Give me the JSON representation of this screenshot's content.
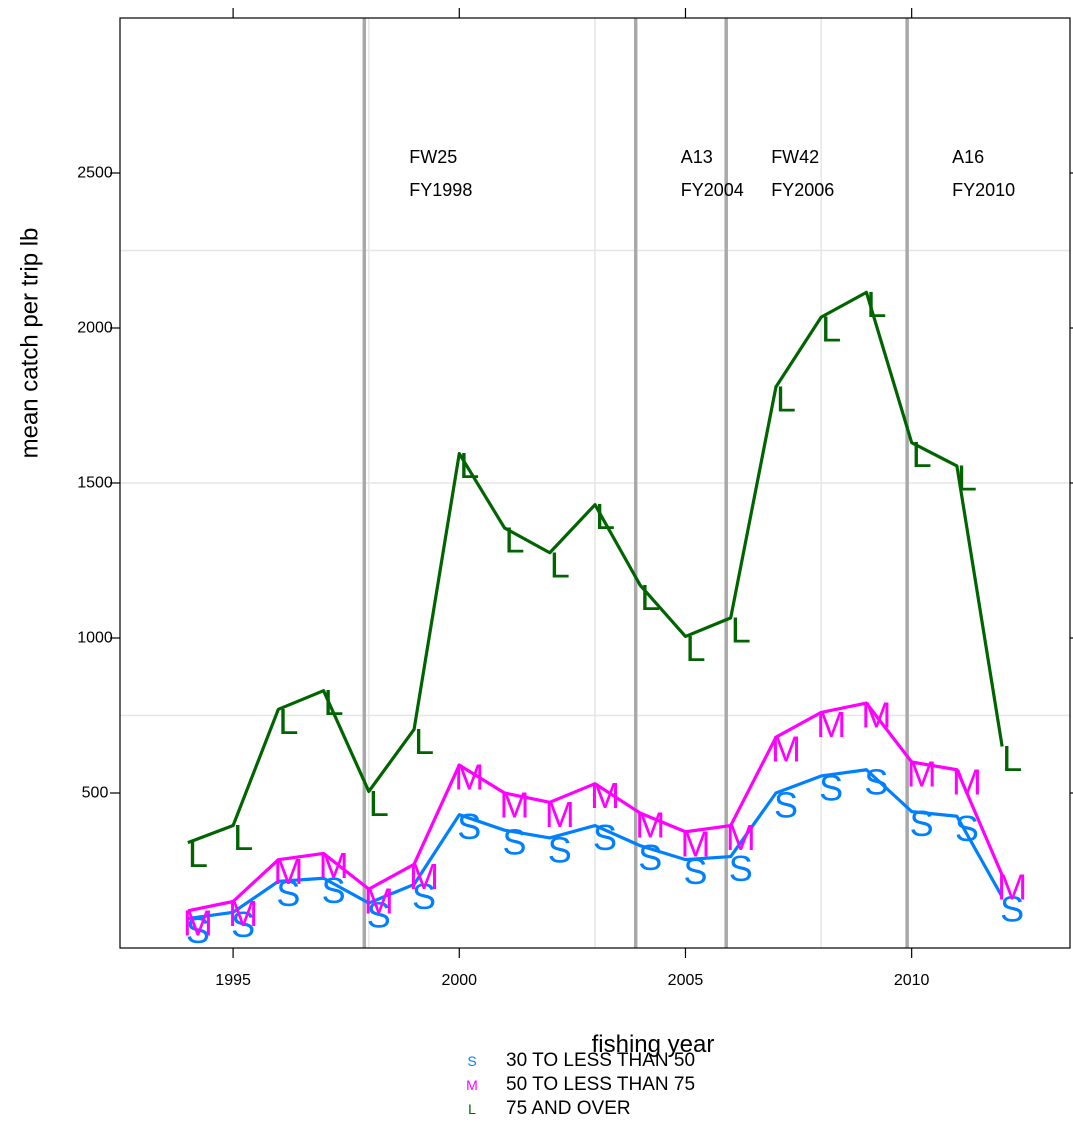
{
  "chart_data": {
    "type": "line",
    "title": "",
    "xlabel": "fishing year",
    "ylabel": "mean catch per trip lb",
    "xlim": [
      1992.5,
      2013.5
    ],
    "ylim": [
      0,
      3000
    ],
    "x_ticks": [
      1995,
      2000,
      2005,
      2010
    ],
    "y_ticks": [
      500,
      1000,
      1500,
      2000,
      2500
    ],
    "grid": true,
    "legend_position": "bottom",
    "x": [
      1994,
      1995,
      1996,
      1997,
      1998,
      1999,
      2000,
      2001,
      2002,
      2003,
      2004,
      2005,
      2006,
      2007,
      2008,
      2009,
      2010,
      2011,
      2012
    ],
    "series": [
      {
        "name": "30 TO LESS THAN 50",
        "symbol": "S",
        "color": "#0080ff",
        "values": [
          95,
          115,
          215,
          225,
          145,
          205,
          430,
          380,
          355,
          395,
          330,
          285,
          295,
          500,
          555,
          575,
          440,
          425,
          165
        ]
      },
      {
        "name": "50 TO LESS THAN 75",
        "symbol": "M",
        "color": "#ff00ff",
        "values": [
          120,
          150,
          285,
          305,
          190,
          270,
          590,
          500,
          470,
          530,
          435,
          375,
          395,
          680,
          760,
          790,
          600,
          575,
          235
        ]
      },
      {
        "name": "75 AND OVER",
        "symbol": "L",
        "color": "#006400",
        "values": [
          340,
          395,
          770,
          830,
          505,
          705,
          1595,
          1355,
          1275,
          1430,
          1170,
          1005,
          1065,
          1810,
          2035,
          2115,
          1630,
          1555,
          650
        ]
      }
    ],
    "events": [
      {
        "x": 1997.9,
        "line1": "FW25",
        "line2": "FY1998"
      },
      {
        "x": 2003.9,
        "line1": "A13",
        "line2": "FY2004"
      },
      {
        "x": 2005.9,
        "line1": "FW42",
        "line2": "FY2006"
      },
      {
        "x": 2009.9,
        "line1": "A16",
        "line2": "FY2010"
      }
    ],
    "event_label_y": 2500,
    "grid_x": [
      1998,
      2003,
      2008
    ],
    "grid_y": [
      750,
      1500,
      2250
    ]
  }
}
